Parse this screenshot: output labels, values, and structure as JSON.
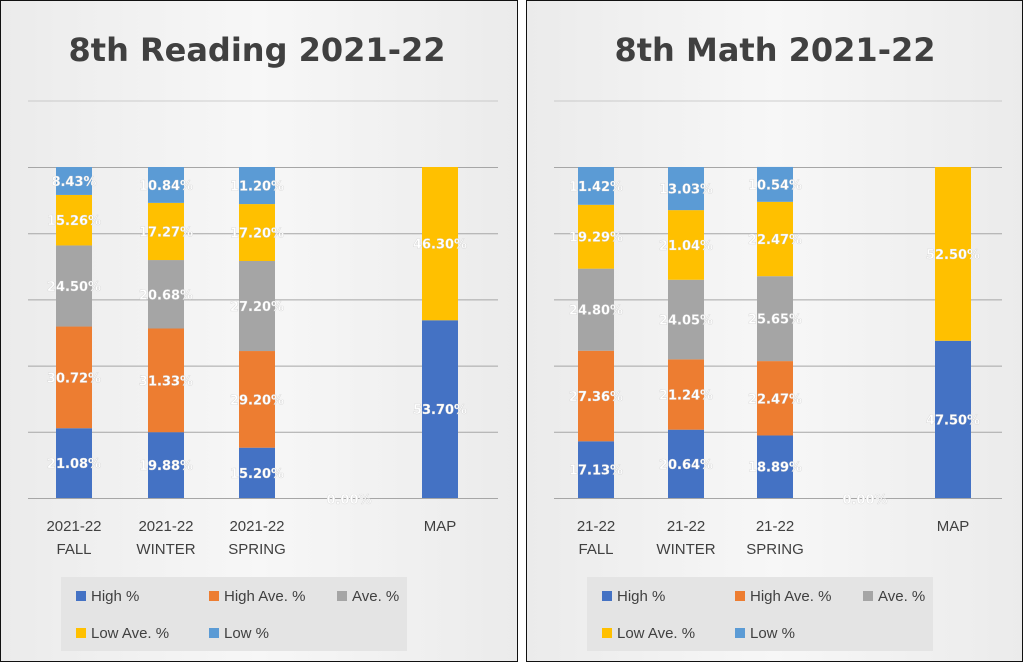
{
  "chart_data": [
    {
      "type": "bar",
      "stacked": true,
      "title": "8th Reading 2021-22",
      "categories": [
        [
          "2021-22",
          "FALL"
        ],
        [
          "2021-22",
          "WINTER"
        ],
        [
          "2021-22",
          "SPRING"
        ],
        [
          "",
          ""
        ],
        [
          "MAP",
          ""
        ]
      ],
      "series": [
        {
          "name": "High %",
          "color": "#4472C4",
          "values": [
            21.08,
            19.88,
            15.2,
            0.0,
            53.7
          ]
        },
        {
          "name": "High Ave. %",
          "color": "#ED7D31",
          "values": [
            30.72,
            31.33,
            29.2,
            null,
            null
          ]
        },
        {
          "name": "Ave. %",
          "color": "#A5A5A5",
          "values": [
            24.5,
            20.68,
            27.2,
            null,
            null
          ]
        },
        {
          "name": "Low Ave. %",
          "color": "#FFC000",
          "values": [
            15.26,
            17.27,
            17.2,
            null,
            46.3
          ]
        },
        {
          "name": "Low %",
          "color": "#5B9BD5",
          "values": [
            8.43,
            10.84,
            11.2,
            null,
            null
          ]
        }
      ],
      "data_labels": [
        [
          "21.08%",
          "19.88%",
          "15.20%",
          "0.00%",
          "53.70%"
        ],
        [
          "30.72%",
          "31.33%",
          "29.20%",
          "",
          ""
        ],
        [
          "24.50%",
          "20.68%",
          "27.20%",
          "",
          ""
        ],
        [
          "15.26%",
          "17.27%",
          "17.20%",
          "",
          "46.30%"
        ],
        [
          "8.43%",
          "10.84%",
          "11.20%",
          "",
          ""
        ]
      ],
      "ylim": [
        0,
        100
      ],
      "grid": true,
      "legend": "bottom"
    },
    {
      "type": "bar",
      "stacked": true,
      "title": "8th Math 2021-22",
      "categories": [
        [
          "21-22",
          "FALL"
        ],
        [
          "21-22",
          "WINTER"
        ],
        [
          "21-22",
          "SPRING"
        ],
        [
          "",
          ""
        ],
        [
          "MAP",
          ""
        ]
      ],
      "series": [
        {
          "name": "High %",
          "color": "#4472C4",
          "values": [
            17.13,
            20.64,
            18.89,
            0.0,
            47.5
          ]
        },
        {
          "name": "High Ave. %",
          "color": "#ED7D31",
          "values": [
            27.36,
            21.24,
            22.47,
            null,
            null
          ]
        },
        {
          "name": "Ave. %",
          "color": "#A5A5A5",
          "values": [
            24.8,
            24.05,
            25.65,
            null,
            null
          ]
        },
        {
          "name": "Low Ave. %",
          "color": "#FFC000",
          "values": [
            19.29,
            21.04,
            22.47,
            null,
            52.5
          ]
        },
        {
          "name": "Low %",
          "color": "#5B9BD5",
          "values": [
            11.42,
            13.03,
            10.54,
            null,
            null
          ]
        }
      ],
      "data_labels": [
        [
          "17.13%",
          "20.64%",
          "18.89%",
          "0.00%",
          "47.50%"
        ],
        [
          "27.36%",
          "21.24%",
          "22.47%",
          "",
          ""
        ],
        [
          "24.80%",
          "24.05%",
          "25.65%",
          "",
          ""
        ],
        [
          "19.29%",
          "21.04%",
          "22.47%",
          "",
          "52.50%"
        ],
        [
          "11.42%",
          "13.03%",
          "10.54%",
          "",
          ""
        ]
      ],
      "ylim": [
        0,
        100
      ],
      "grid": true,
      "legend": "bottom"
    }
  ]
}
